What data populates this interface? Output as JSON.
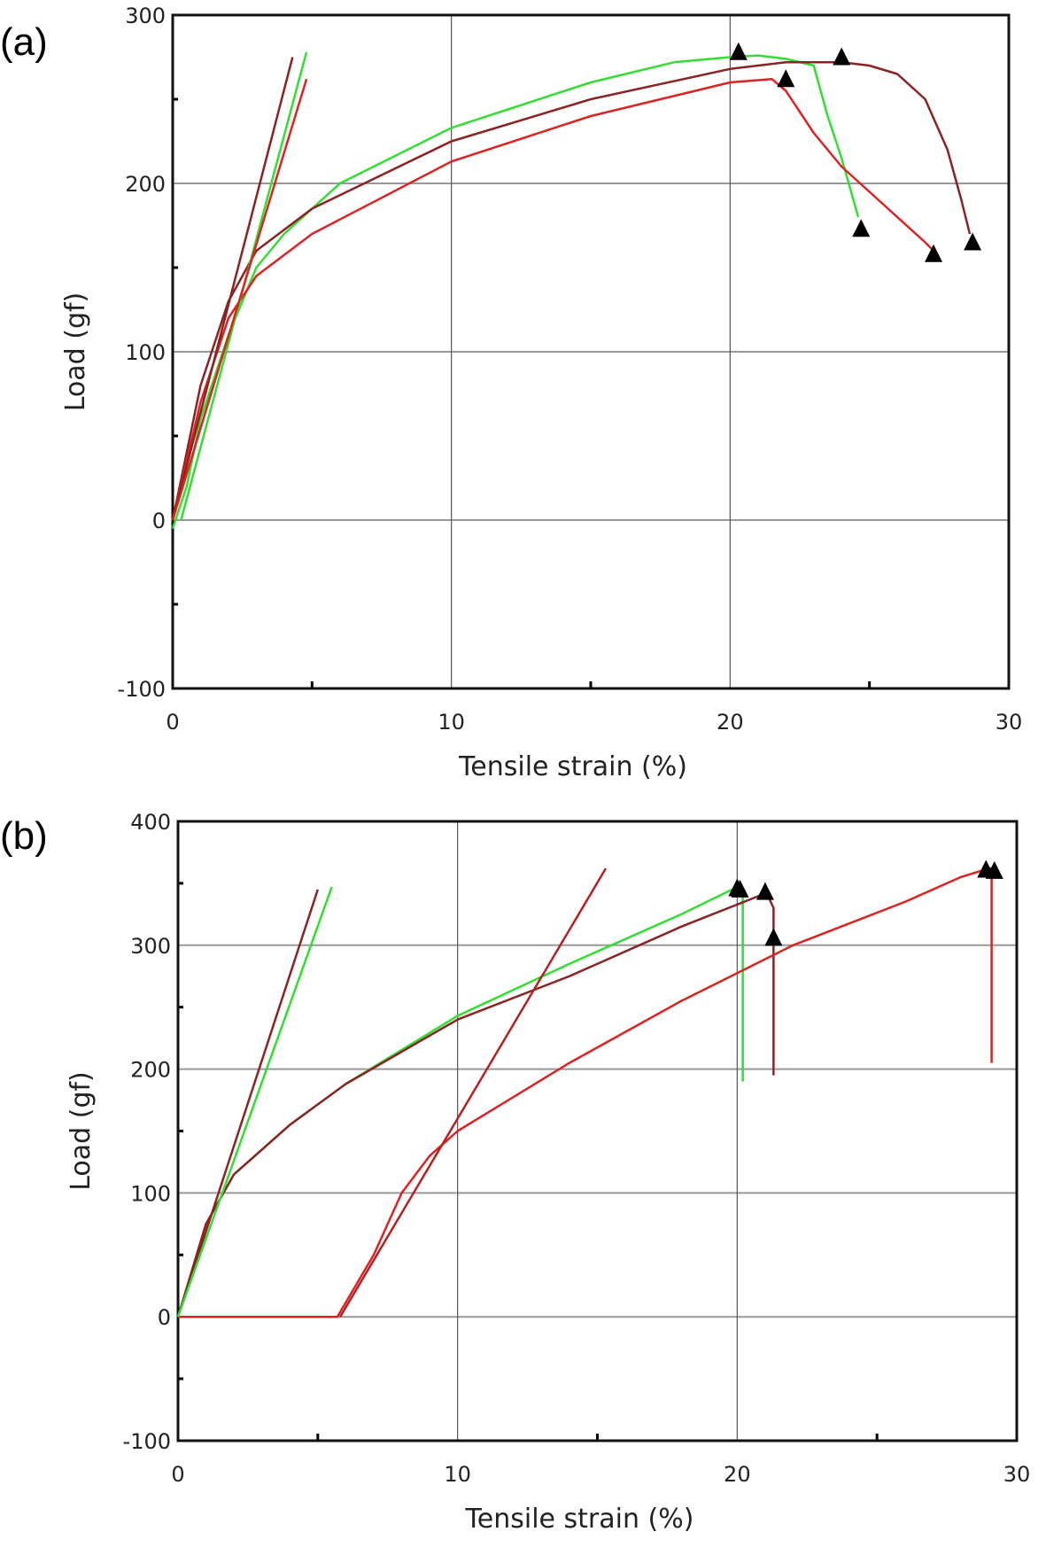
{
  "chart_data": [
    {
      "panel_label": "(a)",
      "type": "line",
      "xlabel": "Tensile strain (%)",
      "ylabel": "Load (gf)",
      "xlim": [
        0,
        30
      ],
      "ylim": [
        -100,
        300
      ],
      "xticks": [
        "0",
        "10",
        "20",
        "30"
      ],
      "yticks": [
        "300",
        "200",
        "100",
        "0",
        "-100"
      ],
      "grid": true,
      "colors": {
        "green": "#33dd33",
        "brown": "#8b2323",
        "red": "#dd2222"
      },
      "series": [
        {
          "name": "green",
          "color": "#33dd33",
          "points": [
            [
              0,
              -5
            ],
            [
              0.5,
              20
            ],
            [
              1,
              60
            ],
            [
              2,
              110
            ],
            [
              3,
              150
            ],
            [
              4,
              170
            ],
            [
              6,
              200
            ],
            [
              10,
              233
            ],
            [
              15,
              260
            ],
            [
              18,
              272
            ],
            [
              20,
              275
            ],
            [
              21,
              276
            ],
            [
              22,
              274
            ],
            [
              23,
              270
            ],
            [
              23.5,
              240
            ],
            [
              24,
              215
            ],
            [
              24.6,
              180
            ]
          ]
        },
        {
          "name": "brown",
          "color": "#8b2323",
          "points": [
            [
              0,
              0
            ],
            [
              1,
              80
            ],
            [
              2,
              130
            ],
            [
              3,
              160
            ],
            [
              5,
              185
            ],
            [
              10,
              225
            ],
            [
              15,
              250
            ],
            [
              20,
              268
            ],
            [
              22,
              272
            ],
            [
              24,
              272
            ],
            [
              25,
              270
            ],
            [
              26,
              265
            ],
            [
              27,
              250
            ],
            [
              27.8,
              220
            ],
            [
              28.3,
              190
            ],
            [
              28.6,
              170
            ]
          ]
        },
        {
          "name": "red",
          "color": "#dd2222",
          "points": [
            [
              0,
              0
            ],
            [
              1,
              70
            ],
            [
              2,
              120
            ],
            [
              3,
              145
            ],
            [
              5,
              170
            ],
            [
              10,
              213
            ],
            [
              15,
              240
            ],
            [
              20,
              260
            ],
            [
              21.5,
              262
            ],
            [
              22,
              255
            ],
            [
              23,
              230
            ],
            [
              24,
              210
            ],
            [
              25,
              195
            ],
            [
              26,
              180
            ],
            [
              27,
              165
            ],
            [
              27.3,
              160
            ]
          ]
        },
        {
          "name": "brown-tangent",
          "color": "#8b2323",
          "points": [
            [
              0,
              0
            ],
            [
              4.3,
              275
            ]
          ]
        },
        {
          "name": "green-tangent",
          "color": "#33dd33",
          "points": [
            [
              0.3,
              0
            ],
            [
              4.8,
              278
            ]
          ]
        },
        {
          "name": "red-tangent",
          "color": "#dd2222",
          "points": [
            [
              0,
              0
            ],
            [
              4.8,
              262
            ]
          ]
        }
      ],
      "markers": [
        [
          20.3,
          278
        ],
        [
          22,
          262
        ],
        [
          24,
          275
        ],
        [
          24.7,
          173
        ],
        [
          27.3,
          158
        ],
        [
          28.7,
          165
        ]
      ]
    },
    {
      "panel_label": "(b)",
      "type": "line",
      "xlabel": "Tensile strain (%)",
      "ylabel": "Load (gf)",
      "xlim": [
        0,
        30
      ],
      "ylim": [
        -100,
        400
      ],
      "xticks": [
        "0",
        "10",
        "20",
        "30"
      ],
      "yticks": [
        "400",
        "300",
        "200",
        "100",
        "0",
        "-100"
      ],
      "grid": true,
      "series": [
        {
          "name": "green",
          "color": "#33dd33",
          "points": [
            [
              0,
              0
            ],
            [
              1,
              75
            ],
            [
              2,
              115
            ],
            [
              4,
              155
            ],
            [
              6,
              188
            ],
            [
              10,
              243
            ],
            [
              14,
              285
            ],
            [
              18,
              325
            ],
            [
              20,
              347
            ],
            [
              20.2,
              340
            ],
            [
              20.2,
              190
            ]
          ]
        },
        {
          "name": "brown",
          "color": "#8b2323",
          "points": [
            [
              0,
              0
            ],
            [
              1,
              75
            ],
            [
              2,
              115
            ],
            [
              4,
              155
            ],
            [
              6,
              188
            ],
            [
              10,
              240
            ],
            [
              14,
              275
            ],
            [
              18,
              315
            ],
            [
              20.8,
              340
            ],
            [
              21,
              345
            ],
            [
              21.3,
              330
            ],
            [
              21.3,
              195
            ]
          ]
        },
        {
          "name": "red",
          "color": "#dd2222",
          "points": [
            [
              0,
              0
            ],
            [
              5.7,
              0
            ],
            [
              7,
              50
            ],
            [
              8,
              100
            ],
            [
              9,
              130
            ],
            [
              10,
              150
            ],
            [
              14,
              205
            ],
            [
              18,
              255
            ],
            [
              22,
              300
            ],
            [
              26,
              335
            ],
            [
              28,
              355
            ],
            [
              29,
              362
            ],
            [
              29.1,
              362
            ],
            [
              29.1,
              205
            ]
          ]
        },
        {
          "name": "brown-tangent",
          "color": "#8b2323",
          "points": [
            [
              0,
              0
            ],
            [
              5.0,
              345
            ]
          ]
        },
        {
          "name": "green-tangent",
          "color": "#33dd33",
          "points": [
            [
              0,
              0
            ],
            [
              5.5,
              347
            ]
          ]
        },
        {
          "name": "red-tangent",
          "color": "#b52020",
          "points": [
            [
              5.8,
              0
            ],
            [
              15.3,
              362
            ]
          ]
        }
      ],
      "markers": [
        [
          20,
          346
        ],
        [
          20.1,
          345
        ],
        [
          21,
          343
        ],
        [
          21.3,
          306
        ],
        [
          28.9,
          361
        ],
        [
          29.2,
          360
        ]
      ]
    }
  ]
}
